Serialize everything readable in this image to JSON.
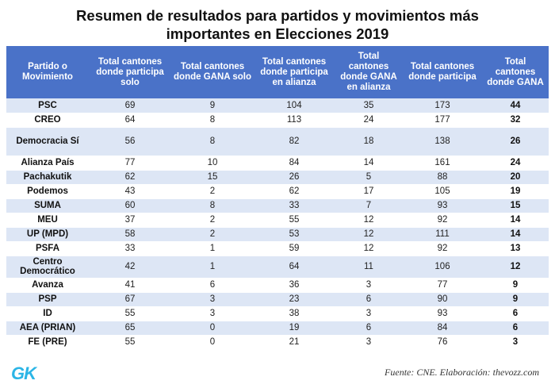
{
  "title": {
    "line1": "Resumen de resultados para partidos y movimientos más",
    "line2": "importantes en Elecciones 2019"
  },
  "columns": [
    "Partido o Movimiento",
    "Total cantones donde participa solo",
    "Total cantones donde GANA solo",
    "Total cantones donde participa en alianza",
    "Total cantones donde GANA en alianza",
    "Total cantones donde participa",
    "Total cantones donde GANA"
  ],
  "rows": [
    {
      "party": "PSC",
      "c1": "69",
      "c2": "9",
      "c3": "104",
      "c4": "35",
      "c5": "173",
      "c6": "44"
    },
    {
      "party": "CREO",
      "c1": "64",
      "c2": "8",
      "c3": "113",
      "c4": "24",
      "c5": "177",
      "c6": "32"
    },
    {
      "party": "Democracia Sí",
      "c1": "56",
      "c2": "8",
      "c3": "82",
      "c4": "18",
      "c5": "138",
      "c6": "26"
    },
    {
      "party": "Alianza País",
      "c1": "77",
      "c2": "10",
      "c3": "84",
      "c4": "14",
      "c5": "161",
      "c6": "24"
    },
    {
      "party": "Pachakutik",
      "c1": "62",
      "c2": "15",
      "c3": "26",
      "c4": "5",
      "c5": "88",
      "c6": "20"
    },
    {
      "party": "Podemos",
      "c1": "43",
      "c2": "2",
      "c3": "62",
      "c4": "17",
      "c5": "105",
      "c6": "19"
    },
    {
      "party": "SUMA",
      "c1": "60",
      "c2": "8",
      "c3": "33",
      "c4": "7",
      "c5": "93",
      "c6": "15"
    },
    {
      "party": "MEU",
      "c1": "37",
      "c2": "2",
      "c3": "55",
      "c4": "12",
      "c5": "92",
      "c6": "14"
    },
    {
      "party": "UP (MPD)",
      "c1": "58",
      "c2": "2",
      "c3": "53",
      "c4": "12",
      "c5": "111",
      "c6": "14"
    },
    {
      "party": "PSFA",
      "c1": "33",
      "c2": "1",
      "c3": "59",
      "c4": "12",
      "c5": "92",
      "c6": "13"
    },
    {
      "party": "Centro Democrático",
      "c1": "42",
      "c2": "1",
      "c3": "64",
      "c4": "11",
      "c5": "106",
      "c6": "12"
    },
    {
      "party": "Avanza",
      "c1": "41",
      "c2": "6",
      "c3": "36",
      "c4": "3",
      "c5": "77",
      "c6": "9"
    },
    {
      "party": "PSP",
      "c1": "67",
      "c2": "3",
      "c3": "23",
      "c4": "6",
      "c5": "90",
      "c6": "9"
    },
    {
      "party": "ID",
      "c1": "55",
      "c2": "3",
      "c3": "38",
      "c4": "3",
      "c5": "93",
      "c6": "6"
    },
    {
      "party": "AEA (PRIAN)",
      "c1": "65",
      "c2": "0",
      "c3": "19",
      "c4": "6",
      "c5": "84",
      "c6": "6"
    },
    {
      "party": "FE (PRE)",
      "c1": "55",
      "c2": "0",
      "c3": "21",
      "c4": "3",
      "c5": "76",
      "c6": "3"
    }
  ],
  "footer": {
    "logo": "GK",
    "source": "Fuente: CNE. Elaboración: thevozz.com"
  },
  "colors": {
    "header_bg": "#4a72c8",
    "row_alt": "#dde6f5",
    "logo": "#2bb5e6"
  }
}
